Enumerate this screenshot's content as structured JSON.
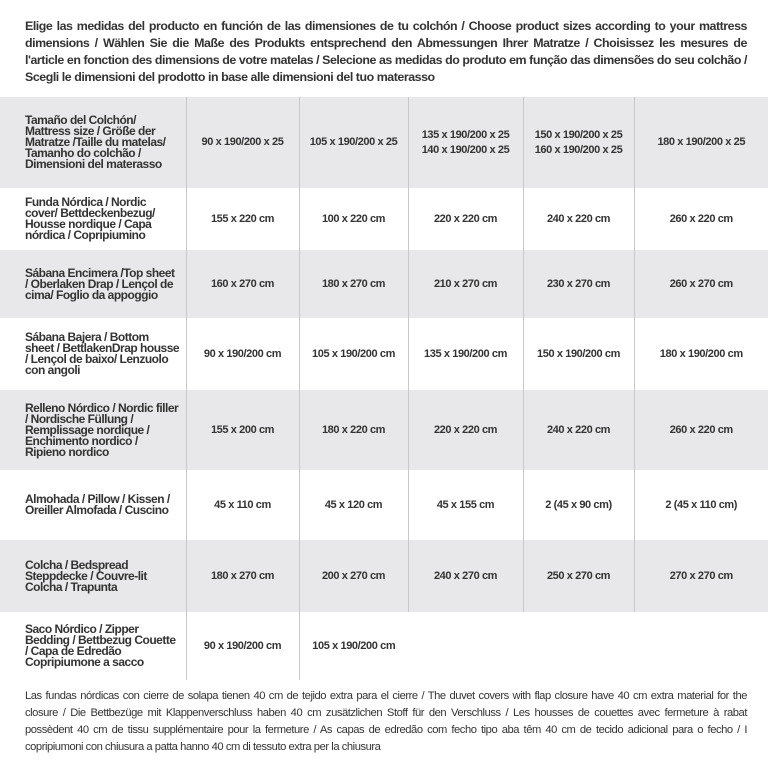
{
  "intro": "Elige las medidas del producto en función de las dimensiones de tu colchón / Choose product sizes according to your mattress dimensions / Wählen Sie die Maße des Produkts entsprechend den Abmessungen Ihrer Matratze / Choisissez les mesures de l'article en fonction des dimensions de votre matelas / Selecione as medidas do produto em função das dimensões do seu colchão / Scegli le dimensioni del prodotto in base alle dimensioni del tuo materasso",
  "table": {
    "header": {
      "label": "Tamaño del Colchón/ Mattress size / Größe der Matratze /Taille du matelas/ Tamanho do colchão / Dimensioni del materasso",
      "sizes": [
        [
          "90 x 190/200 x 25"
        ],
        [
          "105 x 190/200 x 25"
        ],
        [
          "135 x 190/200 x 25",
          "140 x 190/200 x 25"
        ],
        [
          "150 x 190/200 x 25",
          "160 x 190/200 x 25"
        ],
        [
          "180 x 190/200 x 25"
        ]
      ]
    },
    "rows": [
      {
        "label": "Funda Nórdica /  Nordic cover/ Bettdeckenbezug/ Housse nordique  / Capa nórdica / Copripiumino",
        "values": [
          "155 x 220 cm",
          "100 x 220 cm",
          "220 x 220 cm",
          "240 x 220 cm",
          "260 x 220 cm"
        ]
      },
      {
        "label": "Sábana Encimera /Top sheet / Oberlaken Drap / Lençol de cima/ Foglio da appoggio",
        "values": [
          "160 x 270 cm",
          "180 x 270 cm",
          "210 x 270 cm",
          "230 x 270 cm",
          "260 x 270 cm"
        ]
      },
      {
        "label": "Sábana Bajera / Bottom sheet / BettlakenDrap housse / Lençol de baixo/ Lenzuolo con angoli",
        "values": [
          "90 x 190/200 cm",
          "105 x 190/200 cm",
          "135 x 190/200 cm",
          "150 x 190/200 cm",
          "180 x 190/200 cm"
        ]
      },
      {
        "label": "Relleno Nórdico / Nordic filler / Nordische Füllung / Remplissage nordique / Enchimento nordico / Ripieno nordico",
        "values": [
          "155 x 200 cm",
          "180 x 220 cm",
          "220 x 220 cm",
          "240 x 220 cm",
          "260 x 220 cm"
        ]
      },
      {
        "label": "Almohada  / Pillow / Kissen / Oreiller Almofada / Cuscino",
        "values": [
          "45 x 110 cm",
          "45 x 120 cm",
          "45 x 155 cm",
          "2 (45 x 90 cm)",
          "2 (45 x 110 cm)"
        ]
      },
      {
        "label": "Colcha / Bedspread Steppdecke / Couvre-lit Colcha / Trapunta",
        "values": [
          "180 x 270 cm",
          "200 x 270 cm",
          "240 x 270 cm",
          "250 x 270 cm",
          "270 x 270 cm"
        ]
      },
      {
        "label": "Saco Nórdico / Zipper Bedding / Bettbezug Couette  / Capa de Edredão Copripiumone a sacco",
        "values": [
          "90 x 190/200 cm",
          "105 x 190/200 cm",
          "",
          "",
          ""
        ]
      }
    ]
  },
  "footer": "Las fundas nórdicas con cierre de solapa tienen 40 cm de tejido extra para el cierre  / The duvet covers with flap closure have 40 cm extra material for the closure / Die Bettbezüge mit Klappenverschluss haben 40 cm zusätzlichen Stoff für den Verschluss / Les housses de couettes avec fermeture à rabat possèdent 40 cm de tissu supplémentaire pour la fermeture / As capas de edredão com fecho tipo aba têm 40 cm de tecido adicional para o fecho / I copripiumoni con chiusura a patta hanno 40 cm di tessuto extra per la chiusura"
}
